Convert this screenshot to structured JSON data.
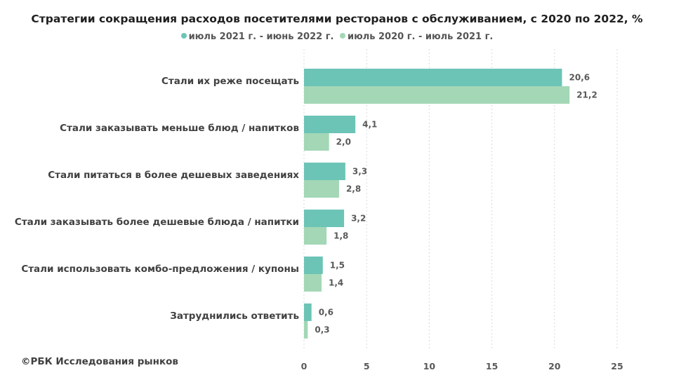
{
  "chart_data": {
    "type": "bar",
    "orientation": "horizontal",
    "title": "Стратегии сокращения расходов посетителями ресторанов с обслуживанием, с 2020 по 2022, %",
    "categories": [
      "Стали их реже посещать",
      "Стали заказывать меньше блюд / напитков",
      "Стали питаться в более дешевых заведениях",
      "Стали заказывать более дешевые блюда / напитки",
      "Стали использовать комбо-предложения / купоны",
      "Затруднились ответить"
    ],
    "series": [
      {
        "name": "июль 2021 г. - июнь 2022 г.",
        "color": "#6cc4b6",
        "values": [
          20.6,
          4.1,
          3.3,
          3.2,
          1.5,
          0.6
        ],
        "labels": [
          "20,6",
          "4,1",
          "3,3",
          "3,2",
          "1,5",
          "0,6"
        ]
      },
      {
        "name": "июль 2020 г. - июль 2021 г.",
        "color": "#a3d7b6",
        "values": [
          21.2,
          2.0,
          2.8,
          1.8,
          1.4,
          0.3
        ],
        "labels": [
          "21,2",
          "2,0",
          "2,8",
          "1,8",
          "1,4",
          "0,3"
        ]
      }
    ],
    "xlim": [
      0,
      25
    ],
    "xticks": [
      0,
      5,
      10,
      15,
      20,
      25
    ],
    "grid": true,
    "legend": "top-center",
    "source": "©РБК Исследования рынков"
  },
  "colors": {
    "grid": "#d9d9d9",
    "text": "#404040"
  }
}
